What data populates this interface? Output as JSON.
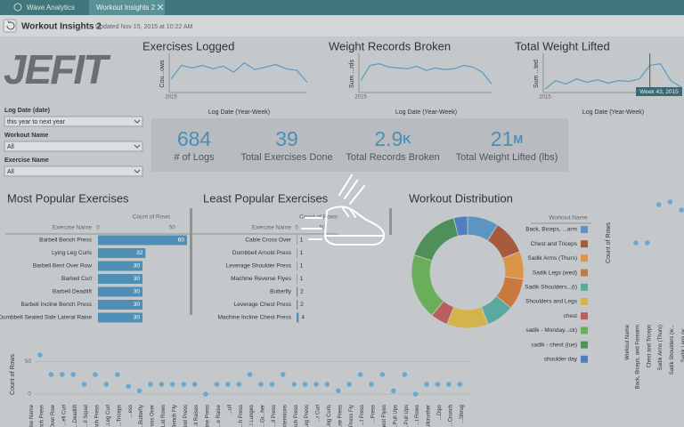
{
  "tabs": [
    "Wave Analytics",
    "Workout Insights 2"
  ],
  "header": {
    "title": "Workout Insights 2",
    "updated": "Updated Nov 15, 2015 at 10:22 AM"
  },
  "logo": "JEFIT",
  "filters": [
    {
      "label": "Log Date (date)",
      "value": "this year to next year"
    },
    {
      "label": "Workout Name",
      "value": "All"
    },
    {
      "label": "Exercise Name",
      "value": "All"
    }
  ],
  "sparklines": [
    {
      "title": "Exercises Logged",
      "y_label": "Cou...ows",
      "x_label": "Log Date (Year-Week)",
      "year": "2015",
      "ylim": [
        0,
        40
      ],
      "values": [
        14,
        30,
        27,
        30,
        26,
        29,
        22,
        33,
        25,
        28,
        31,
        26,
        24,
        10
      ]
    },
    {
      "title": "Weight Records Broken",
      "y_label": "Sum ...rds",
      "x_label": "Log Date (Year-Week)",
      "year": "2015",
      "ylim": [
        0,
        40
      ],
      "values": [
        12,
        30,
        32,
        28,
        27,
        26,
        29,
        24,
        27,
        25,
        26,
        30,
        28,
        22,
        8
      ]
    },
    {
      "title": "Total Weight Lifted",
      "y_label": "Sum ...ted",
      "x_label": "Log Date (Year-Week)",
      "year": "2015",
      "tooltip": "Week 43, 2015",
      "ylim": [
        0,
        40
      ],
      "values": [
        2,
        12,
        8,
        14,
        10,
        13,
        9,
        12,
        11,
        14,
        30,
        32,
        12,
        4
      ]
    }
  ],
  "kpis": [
    {
      "value": "684",
      "label": "# of Logs"
    },
    {
      "value": "39",
      "label": "Total Exercises Done"
    },
    {
      "value": "2.9",
      "unit": "K",
      "label": "Total Records Broken"
    },
    {
      "value": "21",
      "unit": "M",
      "label": "Total Weight Lifted (lbs)"
    }
  ],
  "most_popular": {
    "title": "Most Popular Exercises",
    "dimension": "Exercise Name",
    "measure": "Count of Rows",
    "xlim": [
      0,
      60
    ],
    "xticks": [
      0,
      50
    ],
    "categories": [
      "Barbell Bench Press",
      "Lying Leg Curls",
      "Barbell Bent Over Row",
      "Barbell Curl",
      "Barbell Deadlift",
      "Barbell Incline Bench Press",
      "Dumbbell Seated Side Lateral Raise"
    ],
    "values": [
      60,
      32,
      30,
      30,
      30,
      30,
      30
    ]
  },
  "least_popular": {
    "title": "Least Popular Exercises",
    "dimension": "Exercise Name",
    "measure": "Count of Rows",
    "xlim": [
      0,
      50
    ],
    "xticks": [
      0,
      50
    ],
    "categories": [
      "Cable Cross Over",
      "Dumbbell Arnold Press",
      "Leverage Shoulder Press",
      "Machine Reverse Flyes",
      "Butterfly",
      "Leverage Chest Press",
      "Machine Incline Chest Press"
    ],
    "values": [
      1,
      1,
      1,
      1,
      2,
      2,
      4
    ]
  },
  "donut": {
    "type": "pie",
    "title": "Workout Distribution",
    "legend_title": "Workout Name",
    "categories": [
      "Back, Biceps, ...arm",
      "Chest and Triceps",
      "Sadik Arms (Thurs)",
      "Sadik Legs (wed)",
      "Sadik Shoulders...(t)",
      "Shoulders and Legs",
      "chest",
      "sadik - Monday...ck)",
      "sadik - chest (tue)",
      "shoulder day"
    ],
    "colors": [
      "#5b95c0",
      "#a85a3c",
      "#dc9446",
      "#c9783e",
      "#5aa8a0",
      "#d3b44c",
      "#b95f5f",
      "#6aad5a",
      "#4f8f5a",
      "#4f7fc0"
    ],
    "values": [
      9,
      10,
      8,
      9,
      8,
      12,
      5,
      19,
      16,
      4
    ]
  },
  "workout_scatter": {
    "type": "scatter",
    "y_label": "Count of Rows",
    "x_label": "Workout Name",
    "ylim": [
      0,
      60
    ],
    "color": "#6aa8cf",
    "categories": [
      "Back, Biceps, and Forearm",
      "Chest and Triceps",
      "Sadik Arms (Thurs)",
      "Sadik Shoulders (w...",
      "Sadik Legs (w..."
    ],
    "values": [
      30,
      30,
      44,
      45,
      42
    ]
  },
  "exercise_scatter": {
    "type": "scatter",
    "y_label": "Count of Rows",
    "x_label": "...ise Name",
    "ylim": [
      0,
      60
    ],
    "yticks": [
      0,
      50
    ],
    "color": "#6aa8cf",
    "categories": [
      "...ench Press",
      "...Over Row",
      "...ell Curl",
      "...Deadlift",
      "...ll Squat",
      "...ench Press",
      "...Leg Curl",
      "...Triceps",
      "...ess",
      "...Butterfly",
      "...Cross Over",
      "...Lat Rows",
      "...Bench Fly",
      "...ind Press",
      "...ll Raises",
      "...line Press",
      "...e Raise",
      "...ull",
      "...h Press",
      "...l Lunges",
      "...Gr...her",
      "...ll Press",
      "...xtensions",
      "...Bench Press",
      "...Leg Press",
      "...r Curl",
      "...ing Curls",
      "...ne Press",
      "...Press Fly",
      "...t Press",
      "...Press",
      "...Chest Flyes",
      "...Pull Ups",
      "...Pull Ups",
      "...t Rows",
      "...Skullcrusher",
      "...Dips",
      "...Crunch",
      "...Shrug"
    ],
    "values": [
      60,
      30,
      30,
      30,
      15,
      30,
      15,
      30,
      12,
      5,
      15,
      15,
      15,
      15,
      15,
      0,
      15,
      15,
      15,
      30,
      15,
      15,
      30,
      15,
      15,
      15,
      15,
      5,
      15,
      30,
      15,
      30,
      5,
      30,
      0,
      15,
      15,
      15,
      15
    ]
  }
}
